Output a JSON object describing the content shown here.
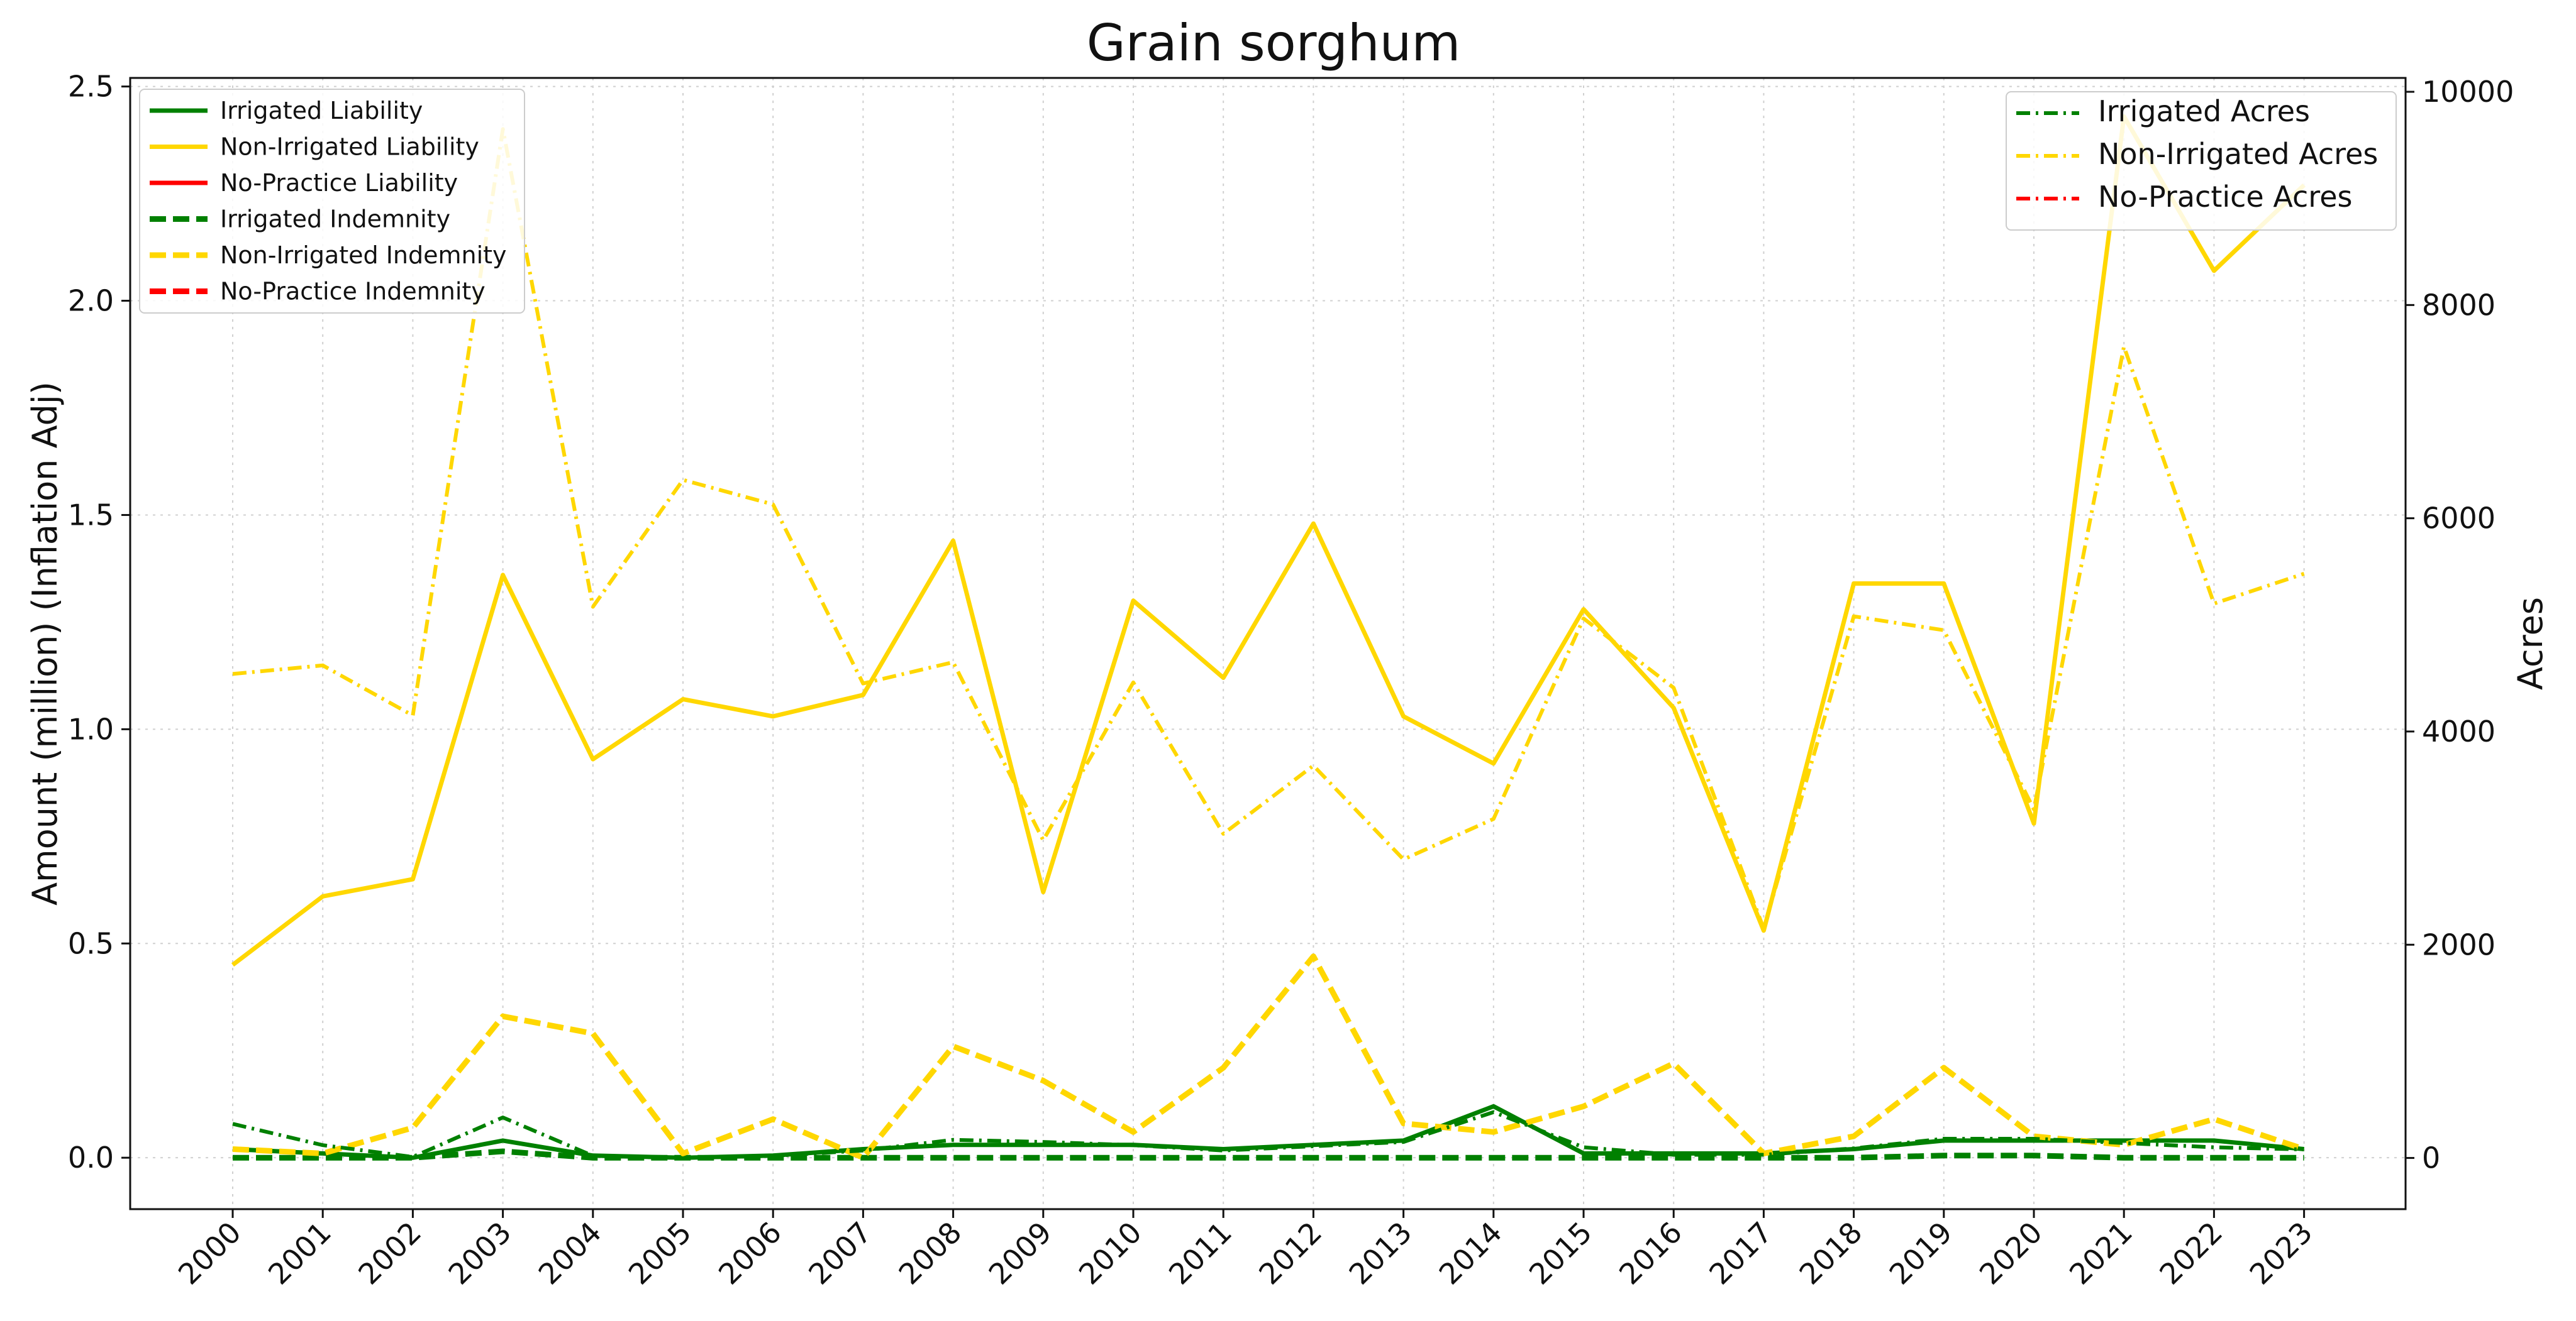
{
  "chart_data": {
    "type": "line",
    "title": "Grain sorghum",
    "xlabel": "",
    "ylabel_left": "Amount (million) (Inflation Adj)",
    "ylabel_right": "Acres",
    "x": [
      "2000",
      "2001",
      "2002",
      "2003",
      "2004",
      "2005",
      "2006",
      "2007",
      "2008",
      "2009",
      "2010",
      "2011",
      "2012",
      "2013",
      "2014",
      "2015",
      "2016",
      "2017",
      "2018",
      "2019",
      "2020",
      "2021",
      "2022",
      "2023"
    ],
    "ylim_left": [
      -0.12,
      2.52
    ],
    "ylim_right": [
      -480,
      10130
    ],
    "yticks_left": [
      "0.0",
      "0.5",
      "1.0",
      "1.5",
      "2.0",
      "2.5"
    ],
    "yticks_right": [
      "0",
      "2000",
      "4000",
      "6000",
      "8000",
      "10000"
    ],
    "grid": true,
    "colors": {
      "irrigated": "#008000",
      "non_irrigated": "#FFD700",
      "no_practice": "#FF0000"
    },
    "legend_left": {
      "placement": "top-left",
      "entries": [
        {
          "label": "Irrigated Liability",
          "color": "#008000",
          "style": "solid"
        },
        {
          "label": "Non-Irrigated Liability",
          "color": "#FFD700",
          "style": "solid"
        },
        {
          "label": "No-Practice Liability",
          "color": "#FF0000",
          "style": "solid"
        },
        {
          "label": "Irrigated Indemnity",
          "color": "#008000",
          "style": "dashed"
        },
        {
          "label": "Non-Irrigated Indemnity",
          "color": "#FFD700",
          "style": "dashed"
        },
        {
          "label": "No-Practice Indemnity",
          "color": "#FF0000",
          "style": "dashed"
        }
      ]
    },
    "legend_right": {
      "placement": "top-right",
      "entries": [
        {
          "label": "Irrigated Acres",
          "color": "#008000",
          "style": "dashdot"
        },
        {
          "label": "Non-Irrigated Acres",
          "color": "#FFD700",
          "style": "dashdot"
        },
        {
          "label": "No-Practice Acres",
          "color": "#FF0000",
          "style": "dashdot"
        }
      ]
    },
    "series": [
      {
        "name": "Irrigated Liability",
        "axis": "left",
        "color": "#008000",
        "style": "solid",
        "values": [
          0.02,
          0.01,
          0.0,
          0.04,
          0.005,
          0.0,
          0.005,
          0.02,
          0.03,
          0.03,
          0.03,
          0.02,
          0.03,
          0.04,
          0.12,
          0.01,
          0.01,
          0.01,
          0.02,
          0.04,
          0.04,
          0.04,
          0.04,
          0.02
        ]
      },
      {
        "name": "Non-Irrigated Liability",
        "axis": "left",
        "color": "#FFD700",
        "style": "solid",
        "values": [
          0.45,
          0.61,
          0.65,
          1.36,
          0.93,
          1.07,
          1.03,
          1.08,
          1.44,
          0.62,
          1.3,
          1.12,
          1.48,
          1.03,
          0.92,
          1.28,
          1.05,
          0.53,
          1.34,
          1.34,
          0.78,
          2.43,
          2.07,
          2.27
        ]
      },
      {
        "name": "Irrigated Indemnity",
        "axis": "left",
        "color": "#008000",
        "style": "dashed",
        "values": [
          0.0,
          0.0,
          0.0,
          0.015,
          0.0,
          0.0,
          0.0,
          0.0,
          0.0,
          0.0,
          0.0,
          0.0,
          0.0,
          0.0,
          0.0,
          0.0,
          0.0,
          0.0,
          0.0,
          0.005,
          0.005,
          0.0,
          0.0,
          0.0
        ]
      },
      {
        "name": "Non-Irrigated Indemnity",
        "axis": "left",
        "color": "#FFD700",
        "style": "dashed",
        "values": [
          0.02,
          0.01,
          0.07,
          0.33,
          0.29,
          0.01,
          0.09,
          0.0,
          0.26,
          0.18,
          0.06,
          0.21,
          0.47,
          0.08,
          0.06,
          0.12,
          0.22,
          0.01,
          0.05,
          0.21,
          0.05,
          0.03,
          0.09,
          0.02
        ]
      },
      {
        "name": "Irrigated Acres",
        "axis": "right",
        "color": "#008000",
        "style": "dashdot",
        "values": [
          320,
          120,
          10,
          380,
          20,
          0,
          20,
          70,
          170,
          150,
          120,
          70,
          110,
          150,
          430,
          100,
          30,
          30,
          90,
          180,
          180,
          140,
          100,
          80
        ]
      },
      {
        "name": "Non-Irrigated Acres",
        "axis": "right",
        "color": "#FFD700",
        "style": "dashdot",
        "values": [
          4540,
          4620,
          4150,
          9650,
          5170,
          6360,
          6130,
          4450,
          4650,
          2980,
          4460,
          3040,
          3680,
          2800,
          3180,
          5060,
          4410,
          2150,
          5080,
          4950,
          3270,
          7610,
          5200,
          5480
        ]
      }
    ]
  }
}
